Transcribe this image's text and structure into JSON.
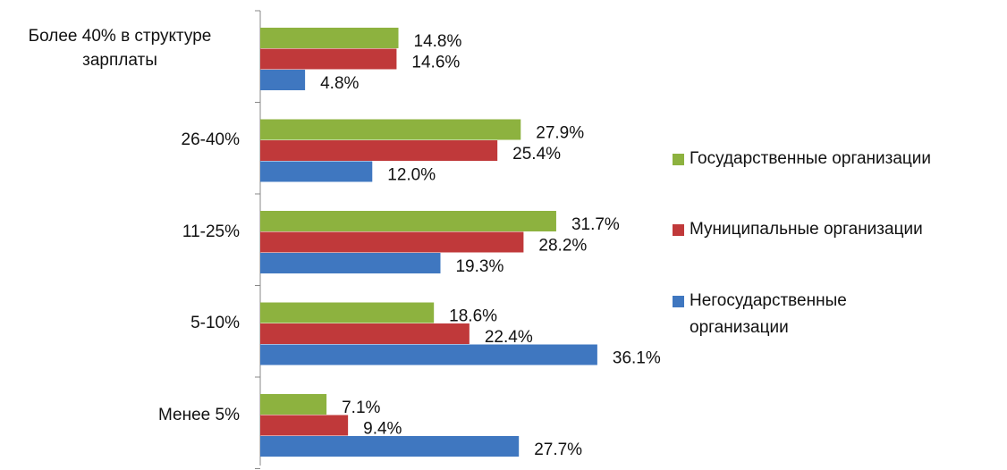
{
  "chart_data": {
    "type": "bar",
    "orientation": "horizontal",
    "categories": [
      "Более 40% в структуре зарплаты",
      "26-40%",
      "11-25%",
      "5-10%",
      "Менее 5%"
    ],
    "series": [
      {
        "name": "Государственные организации",
        "color": "#8db23f",
        "values": [
          14.8,
          27.9,
          31.7,
          18.6,
          7.1
        ],
        "value_labels": [
          "14.8%",
          "27.9%",
          "31.7%",
          "18.6%",
          "7.1%"
        ]
      },
      {
        "name": "Муниципальные организации",
        "color": "#c0393a",
        "values": [
          14.6,
          25.4,
          28.2,
          22.4,
          9.4
        ],
        "value_labels": [
          "14.6%",
          "25.4%",
          "28.2%",
          "22.4%",
          "9.4%"
        ]
      },
      {
        "name": "Негосударственные организации",
        "color": "#3f77c0",
        "values": [
          4.8,
          12.0,
          19.3,
          36.1,
          27.7
        ],
        "value_labels": [
          "4.8%",
          "12.0%",
          "19.3%",
          "36.1%",
          "27.7%"
        ]
      }
    ]
  }
}
